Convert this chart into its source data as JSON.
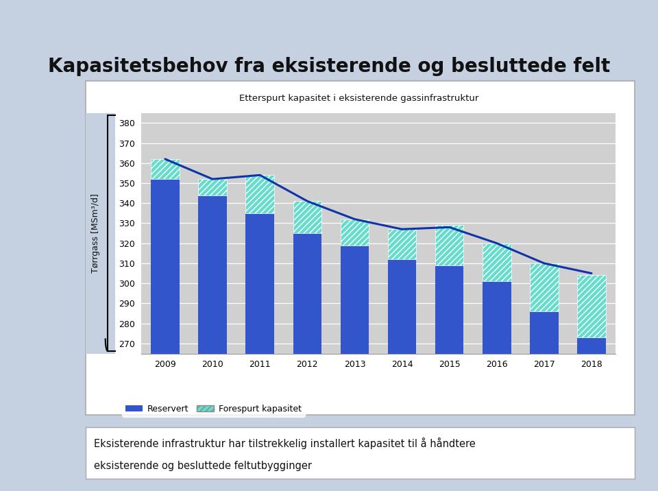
{
  "years": [
    2009,
    2010,
    2011,
    2012,
    2013,
    2014,
    2015,
    2016,
    2017,
    2018
  ],
  "reservert": [
    352,
    344,
    335,
    325,
    319,
    312,
    309,
    301,
    286,
    273
  ],
  "forespurt": [
    10,
    8,
    19,
    16,
    13,
    15,
    20,
    19,
    24,
    31
  ],
  "line_values": [
    362,
    352,
    354,
    341,
    332,
    327,
    328,
    320,
    310,
    305
  ],
  "bar_color": "#3355cc",
  "hatch_facecolor": "#66ddcc",
  "hatch_edgecolor": "#ffffff",
  "line_color": "#1133aa",
  "plot_bg": "#d0d0d0",
  "page_bg": "#c5d0e0",
  "chart_border_color": "#999999",
  "ylim_min": 265,
  "ylim_max": 385,
  "yticks": [
    270,
    280,
    290,
    300,
    310,
    320,
    330,
    340,
    350,
    360,
    370,
    380
  ],
  "title": "Kapasitetsbehov fra eksisterende og besluttede felt",
  "subtitle": "Etterspurt kapasitet i eksisterende gassinfrastruktur",
  "ylabel": "Tørrgass [MSm³/d]",
  "legend_reservert": "Reservert",
  "legend_forespurt": "Forespurt kapasitet",
  "bottom_text_line1": "Eksisterende infrastruktur har tilstrekkelig installert kapasitet til å håndtere",
  "bottom_text_line2": "eksisterende og besluttede feltutbygginger"
}
